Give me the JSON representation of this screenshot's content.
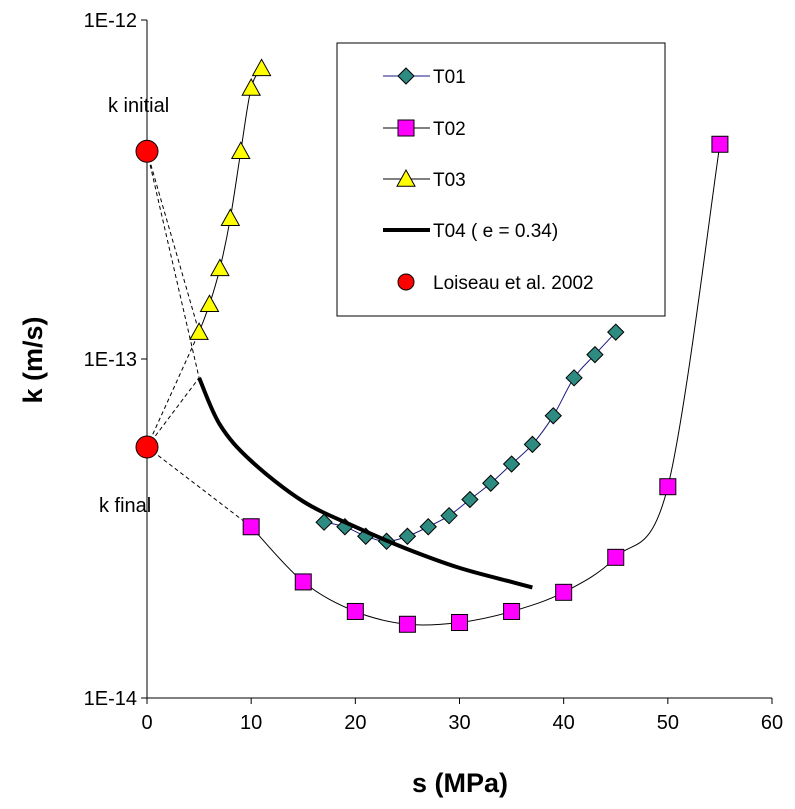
{
  "chart_data": {
    "type": "scatter",
    "xlabel": "s (MPa)",
    "ylabel": "k (m/s)",
    "xlim": [
      0,
      60
    ],
    "ylim": [
      1e-14,
      1e-12
    ],
    "yscale": "log",
    "x_ticks": [
      "0",
      "10",
      "20",
      "30",
      "40",
      "50",
      "60"
    ],
    "y_ticks": [
      "1E-14",
      "1E-13",
      "1E-12"
    ],
    "grid": false,
    "legend_position": "top-right",
    "annotations": [
      "k initial",
      "k final"
    ],
    "series": [
      {
        "name": "T01",
        "marker": "diamond",
        "color": "#2E8B82",
        "line_color": "#1A1A80",
        "points": [
          [
            17,
            3.3e-14
          ],
          [
            19,
            3.2e-14
          ],
          [
            21,
            3e-14
          ],
          [
            23,
            2.9e-14
          ],
          [
            25,
            3e-14
          ],
          [
            27,
            3.2e-14
          ],
          [
            29,
            3.45e-14
          ],
          [
            31,
            3.85e-14
          ],
          [
            33,
            4.3e-14
          ],
          [
            35,
            4.9e-14
          ],
          [
            37,
            5.6e-14
          ],
          [
            39,
            6.8e-14
          ],
          [
            41,
            8.8e-14
          ],
          [
            43,
            1.03e-13
          ],
          [
            45,
            1.2e-13
          ]
        ]
      },
      {
        "name": "T02",
        "marker": "square",
        "color": "#FF00FF",
        "line_color": "#000000",
        "points": [
          [
            10,
            3.2e-14
          ],
          [
            15,
            2.2e-14
          ],
          [
            20,
            1.8e-14
          ],
          [
            25,
            1.65e-14
          ],
          [
            30,
            1.67e-14
          ],
          [
            35,
            1.8e-14
          ],
          [
            40,
            2.05e-14
          ],
          [
            45,
            2.6e-14
          ],
          [
            50,
            4.2e-14
          ],
          [
            55,
            4.3e-13
          ]
        ]
      },
      {
        "name": "T03",
        "marker": "triangle",
        "color": "#FFFF00",
        "line_color": "#000000",
        "points": [
          [
            5,
            1.2e-13
          ],
          [
            6,
            1.45e-13
          ],
          [
            7,
            1.85e-13
          ],
          [
            8,
            2.6e-13
          ],
          [
            9,
            4.1e-13
          ],
          [
            10,
            6.3e-13
          ],
          [
            11,
            7.2e-13
          ]
        ]
      },
      {
        "name": "T04 ( e = 0.34)",
        "marker": "none",
        "color": "#000000",
        "points": [
          [
            5,
            8.8e-14
          ],
          [
            7,
            6.4e-14
          ],
          [
            10,
            5e-14
          ],
          [
            15,
            3.8e-14
          ],
          [
            20,
            3.2e-14
          ],
          [
            25,
            2.75e-14
          ],
          [
            30,
            2.42e-14
          ],
          [
            35,
            2.2e-14
          ],
          [
            37,
            2.12e-14
          ]
        ]
      },
      {
        "name": "Loiseau et al. 2002",
        "marker": "circle",
        "color": "#FF0000",
        "points": [
          [
            0,
            4.1e-13
          ],
          [
            0,
            5.5e-14
          ]
        ]
      }
    ],
    "connectors": [
      [
        [
          0,
          4.1e-13
        ],
        [
          5,
          1.2e-13
        ]
      ],
      [
        [
          0,
          4.1e-13
        ],
        [
          5,
          8.8e-14
        ]
      ],
      [
        [
          0,
          5.5e-14
        ],
        [
          5,
          1.2e-13
        ]
      ],
      [
        [
          0,
          5.5e-14
        ],
        [
          5,
          8.8e-14
        ]
      ],
      [
        [
          0,
          5.5e-14
        ],
        [
          10,
          3.2e-14
        ]
      ]
    ]
  }
}
